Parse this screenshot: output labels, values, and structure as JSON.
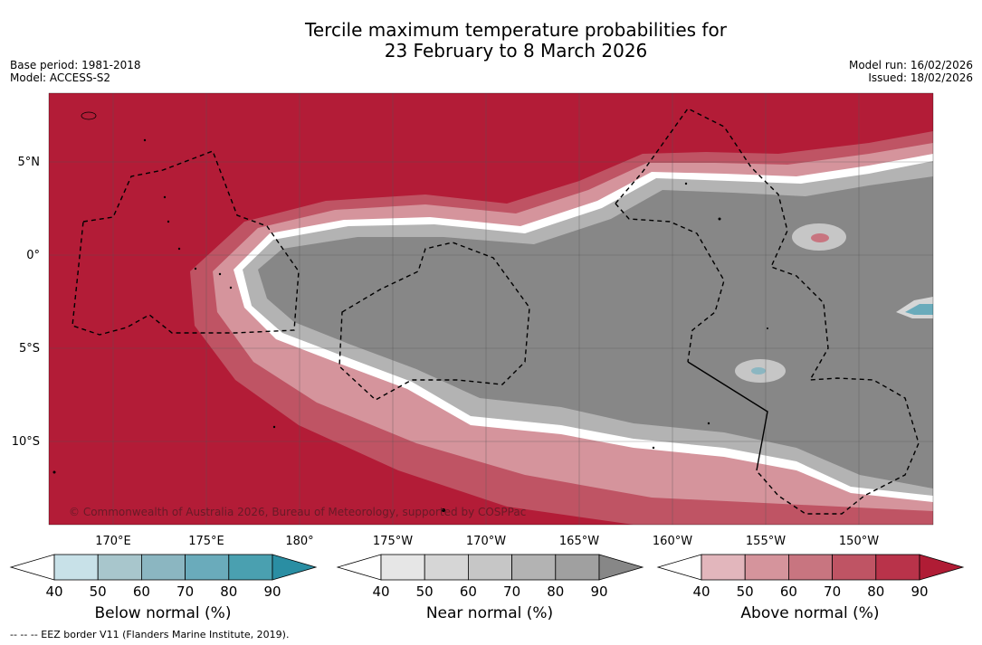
{
  "header": {
    "title_line1": "Tercile maximum temperature probabilities for",
    "title_line2": "23 February to 8 March 2026",
    "base_period": "Base period: 1981-2018",
    "model": "Model: ACCESS-S2",
    "model_run": "Model run: 16/02/2026",
    "issued": "Issued: 18/02/2026"
  },
  "map": {
    "copyright": "© Commonwealth of Australia 2026, Bureau of Meteorology, supported by COSPPac",
    "lat_labels": [
      "5°N",
      "0°",
      "5°S",
      "10°S"
    ],
    "lon_labels": [
      "170°E",
      "175°E",
      "180°",
      "175°W",
      "170°W",
      "165°W",
      "160°W",
      "155°W",
      "150°W"
    ]
  },
  "colors": {
    "above_dominant": "#b31c37",
    "near_dominant": "#878787",
    "below": [
      "#c8e1e8",
      "#a8c6cc",
      "#8bb6c1",
      "#6aabbb",
      "#4aa0b0",
      "#2a8ea3"
    ],
    "near": [
      "#e6e6e6",
      "#d6d6d6",
      "#c6c6c6",
      "#b3b3b3",
      "#a0a0a0",
      "#878787"
    ],
    "above": [
      "#e2b6bc",
      "#d5949c",
      "#c87580",
      "#bf5464",
      "#b9334a",
      "#b01c35"
    ]
  },
  "colorbars": {
    "ticks": [
      "40",
      "50",
      "60",
      "70",
      "80",
      "90"
    ],
    "below_label": "Below normal (%)",
    "near_label": "Near normal (%)",
    "above_label": "Above normal (%)"
  },
  "footer": {
    "eez_note": "--  --  -- EEZ border V11 (Flanders Marine Institute, 2019)."
  }
}
